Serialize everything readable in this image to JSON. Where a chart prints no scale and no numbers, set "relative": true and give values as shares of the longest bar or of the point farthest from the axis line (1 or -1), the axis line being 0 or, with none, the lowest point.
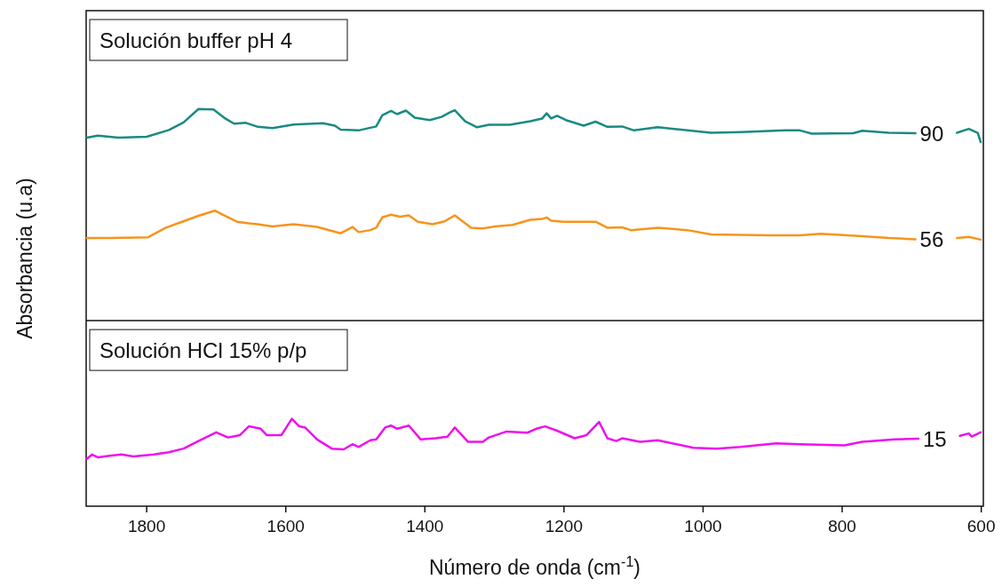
{
  "chart_data": {
    "type": "line",
    "xlabel": "Número de onda (cm$^{-1}$)",
    "ylabel": "Absorbancia (u.a)",
    "relative": true,
    "xlim": [
      1887,
      597
    ],
    "xticks": [
      1800,
      1600,
      1400,
      1200,
      1000,
      800,
      600
    ],
    "legend": "right",
    "annotations": [
      "Solución buffer pH 4",
      "Solución HCl 15% p/p"
    ],
    "ref_lines": [
      {
        "axis": "y",
        "value": 0.467,
        "color": "#111111"
      }
    ],
    "series": [
      {
        "name": "90",
        "color": "#1a8a84",
        "x": [
          1886,
          1870.3,
          1840.5,
          1800,
          1768,
          1747,
          1725.5,
          1704,
          1687,
          1674.3,
          1657.3,
          1640,
          1619,
          1589,
          1546.5,
          1529.5,
          1521,
          1495.4,
          1470,
          1461.3,
          1448.6,
          1440,
          1427.3,
          1414.5,
          1393,
          1376,
          1365.5,
          1357,
          1342,
          1325,
          1308,
          1278,
          1248.3,
          1231.3,
          1224.9,
          1218.5,
          1210,
          1197.2,
          1171.7,
          1154.6,
          1137.6,
          1116.3,
          1099.3,
          1065.2,
          988.5,
          945.9,
          882,
          860.7,
          843.7,
          784,
          771.2,
          732.9,
          694.6,
          665,
          634.9,
          617.9,
          605.1,
          600.9
        ],
        "values": [
          0.928,
          0.933,
          0.928,
          0.93,
          0.947,
          0.966,
          1,
          0.999,
          0.976,
          0.963,
          0.965,
          0.955,
          0.952,
          0.961,
          0.964,
          0.958,
          0.948,
          0.946,
          0.956,
          0.984,
          0.995,
          0.987,
          0.996,
          0.978,
          0.972,
          0.98,
          0.99,
          0.997,
          0.969,
          0.954,
          0.96,
          0.96,
          0.969,
          0.976,
          0.989,
          0.976,
          0.983,
          0.972,
          0.958,
          0.968,
          0.955,
          0.956,
          0.946,
          0.954,
          0.94,
          0.942,
          0.946,
          0.946,
          0.938,
          0.939,
          0.945,
          0.94,
          0.939,
          null,
          0.94,
          0.95,
          0.94,
          0.917
        ]
      },
      {
        "name": "56",
        "color": "#f7941d",
        "x": [
          1886,
          1853.3,
          1798,
          1772.3,
          1755.3,
          1725.5,
          1702,
          1687.1,
          1670.1,
          1653,
          1640.3,
          1619,
          1589.1,
          1555,
          1521,
          1504,
          1495.4,
          1478.4,
          1469.9,
          1461.3,
          1448.6,
          1435.8,
          1423,
          1410.2,
          1388.9,
          1371.9,
          1357,
          1333.5,
          1316.5,
          1299.5,
          1273.9,
          1248.3,
          1231.3,
          1224.9,
          1218.5,
          1201.5,
          1154.6,
          1137.6,
          1116.3,
          1103.5,
          1065.2,
          1022.6,
          988.5,
          903.3,
          860.7,
          830.9,
          775.5,
          732.9,
          694.6,
          665,
          634.9,
          617.9,
          600.9
        ],
        "values": [
          0.675,
          0.675,
          0.677,
          0.701,
          0.712,
          0.731,
          0.744,
          0.731,
          0.716,
          0.712,
          0.71,
          0.704,
          0.71,
          0.703,
          0.687,
          0.703,
          0.69,
          0.695,
          0.701,
          0.727,
          0.734,
          0.729,
          0.732,
          0.716,
          0.71,
          0.717,
          0.732,
          0.701,
          0.699,
          0.704,
          0.708,
          0.721,
          0.723,
          0.727,
          0.719,
          0.716,
          0.716,
          0.701,
          0.702,
          0.695,
          0.701,
          0.695,
          0.684,
          0.682,
          0.682,
          0.686,
          0.68,
          0.675,
          0.672,
          null,
          0.675,
          0.678,
          0.671
        ]
      },
      {
        "name": "15",
        "color": "#ee10ee",
        "x": [
          1886,
          1878.8,
          1870.3,
          1853.3,
          1836.2,
          1819.2,
          1789.4,
          1768.1,
          1746.9,
          1725.5,
          1700,
          1682.9,
          1665.8,
          1653.1,
          1636,
          1627.5,
          1606.2,
          1591.3,
          1580.6,
          1572.1,
          1555,
          1533.8,
          1516.7,
          1504,
          1495.4,
          1478.4,
          1469.9,
          1457.1,
          1448.6,
          1440,
          1423,
          1406,
          1384.6,
          1367.6,
          1357,
          1337.8,
          1316.5,
          1308,
          1282.4,
          1252.6,
          1239.8,
          1227,
          1210,
          1184.5,
          1167.4,
          1149.5,
          1137.6,
          1124.8,
          1116.3,
          1090.7,
          1065.2,
          1014,
          980,
          945.9,
          894.8,
          860.7,
          796.8,
          771.2,
          724.4,
          690.3,
          660,
          630.7,
          617.9,
          613.6,
          600.9
        ],
        "values": [
          0.119,
          0.13,
          0.123,
          0.127,
          0.13,
          0.125,
          0.13,
          0.136,
          0.145,
          0.164,
          0.186,
          0.173,
          0.179,
          0.201,
          0.195,
          0.179,
          0.179,
          0.22,
          0.201,
          0.198,
          0.168,
          0.145,
          0.143,
          0.156,
          0.149,
          0.166,
          0.168,
          0.198,
          0.203,
          0.195,
          0.203,
          0.168,
          0.171,
          0.175,
          0.198,
          0.162,
          0.162,
          0.173,
          0.188,
          0.185,
          0.195,
          0.201,
          0.19,
          0.171,
          0.179,
          0.212,
          0.171,
          0.164,
          0.171,
          0.162,
          0.166,
          0.147,
          0.145,
          0.149,
          0.158,
          0.156,
          0.153,
          0.162,
          0.168,
          0.17,
          null,
          0.177,
          0.183,
          0.175,
          0.186
        ]
      }
    ]
  }
}
